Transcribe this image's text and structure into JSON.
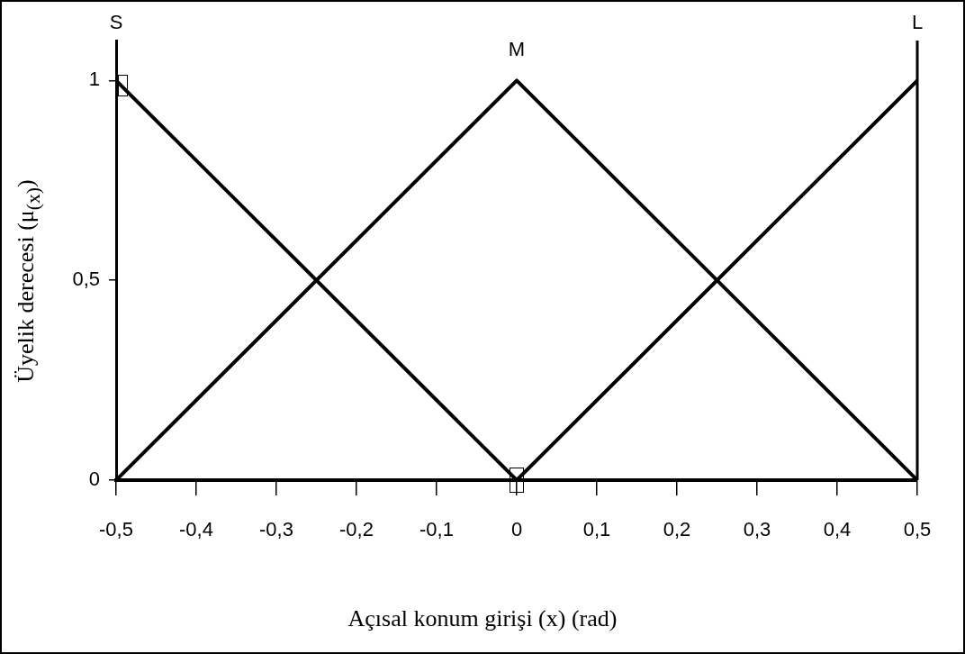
{
  "chart_data": {
    "type": "line",
    "xlabel": "Açısal konum girişi (x) (rad)",
    "ylabel": "Üyelik derecesi (μ$_{(x)}$)",
    "x": [
      -0.5,
      0,
      0.5
    ],
    "series": [
      {
        "name": "S",
        "color": "#000000",
        "values": [
          1,
          0,
          0
        ]
      },
      {
        "name": "M",
        "color": "#000000",
        "values": [
          0,
          1,
          0
        ]
      },
      {
        "name": "L",
        "color": "#000000",
        "values": [
          0,
          0,
          1
        ]
      }
    ],
    "xlim": [
      -0.5,
      0.5
    ],
    "xticks": [
      {
        "value": -0.5,
        "label": "-0,5"
      },
      {
        "value": -0.4,
        "label": "-0,4"
      },
      {
        "value": -0.3,
        "label": "-0,3"
      },
      {
        "value": -0.2,
        "label": "-0,2"
      },
      {
        "value": -0.1,
        "label": "-0,1"
      },
      0,
      {
        "value": 0.1,
        "label": "0,1"
      },
      {
        "value": 0.2,
        "label": "0,2"
      },
      {
        "value": 0.3,
        "label": "0,3"
      },
      {
        "value": 0.4,
        "label": "0,4"
      },
      {
        "value": 0.5,
        "label": "0,5"
      }
    ],
    "ylim": [
      0,
      1.1
    ],
    "yticks": [
      0,
      {
        "value": 0.5,
        "label": "0,5"
      },
      1
    ],
    "grid": false,
    "legend": false,
    "marker": "none",
    "line_style": "solid"
  }
}
